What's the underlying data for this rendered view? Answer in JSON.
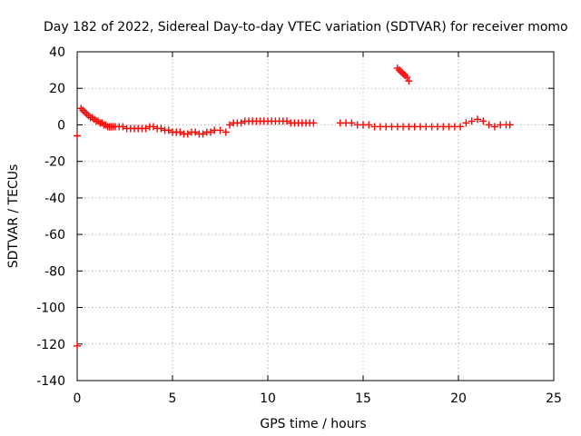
{
  "chart_data": {
    "type": "scatter",
    "title": "Day 182 of 2022, Sidereal Day-to-day VTEC variation (SDTVAR) for receiver momo",
    "xlabel": "GPS time / hours",
    "ylabel": "SDTVAR / TECUs",
    "xlim": [
      0,
      25
    ],
    "ylim": [
      -140,
      40
    ],
    "xticks": [
      0,
      5,
      10,
      15,
      20,
      25
    ],
    "yticks": [
      40,
      20,
      0,
      -20,
      -40,
      -60,
      -80,
      -100,
      -120,
      -140
    ],
    "grid": true,
    "marker": "+",
    "color": "#ff0000",
    "series": [
      {
        "name": "SDTVAR",
        "x": [
          0.0,
          0.0,
          0.2,
          0.3,
          0.4,
          0.5,
          0.6,
          0.7,
          0.8,
          0.9,
          1.0,
          1.1,
          1.2,
          1.3,
          1.4,
          1.5,
          1.6,
          1.7,
          1.8,
          1.9,
          2.0,
          2.2,
          2.4,
          2.6,
          2.8,
          3.0,
          3.2,
          3.4,
          3.6,
          3.8,
          4.0,
          4.2,
          4.4,
          4.6,
          4.8,
          5.0,
          5.2,
          5.4,
          5.6,
          5.8,
          6.0,
          6.2,
          6.4,
          6.6,
          6.8,
          7.0,
          7.2,
          7.5,
          7.8,
          8.0,
          8.2,
          8.4,
          8.6,
          8.8,
          9.0,
          9.2,
          9.4,
          9.6,
          9.8,
          10.0,
          10.2,
          10.4,
          10.6,
          10.8,
          11.0,
          11.2,
          11.4,
          11.6,
          11.8,
          12.0,
          12.2,
          12.4,
          13.8,
          14.1,
          14.4,
          14.7,
          15.0,
          15.3,
          15.6,
          15.9,
          16.2,
          16.5,
          16.8,
          17.1,
          17.4,
          17.7,
          18.0,
          18.3,
          18.6,
          18.9,
          19.2,
          19.5,
          19.8,
          20.1,
          20.4,
          20.7,
          21.0,
          21.3,
          21.6,
          21.9,
          22.2,
          22.5,
          22.7,
          16.8,
          16.9,
          17.0,
          17.1,
          17.2,
          17.3,
          17.4
        ],
        "y": [
          -6,
          -121,
          9,
          8,
          7,
          6,
          5,
          4,
          4,
          3,
          2,
          2,
          1,
          1,
          0,
          0,
          -1,
          -1,
          -1,
          -1,
          -1,
          -1,
          -1,
          -2,
          -2,
          -2,
          -2,
          -2,
          -2,
          -1,
          -1,
          -2,
          -2,
          -3,
          -3,
          -4,
          -4,
          -4,
          -5,
          -5,
          -4,
          -4,
          -5,
          -5,
          -4,
          -4,
          -3,
          -3,
          -4,
          0,
          1,
          1,
          1,
          2,
          2,
          2,
          2,
          2,
          2,
          2,
          2,
          2,
          2,
          2,
          2,
          1,
          1,
          1,
          1,
          1,
          1,
          1,
          1,
          1,
          1,
          0,
          0,
          0,
          -1,
          -1,
          -1,
          -1,
          -1,
          -1,
          -1,
          -1,
          -1,
          -1,
          -1,
          -1,
          -1,
          -1,
          -1,
          -1,
          1,
          2,
          3,
          2,
          0,
          -1,
          0,
          0,
          0,
          31,
          30,
          29,
          28,
          27,
          26,
          24
        ]
      }
    ]
  }
}
